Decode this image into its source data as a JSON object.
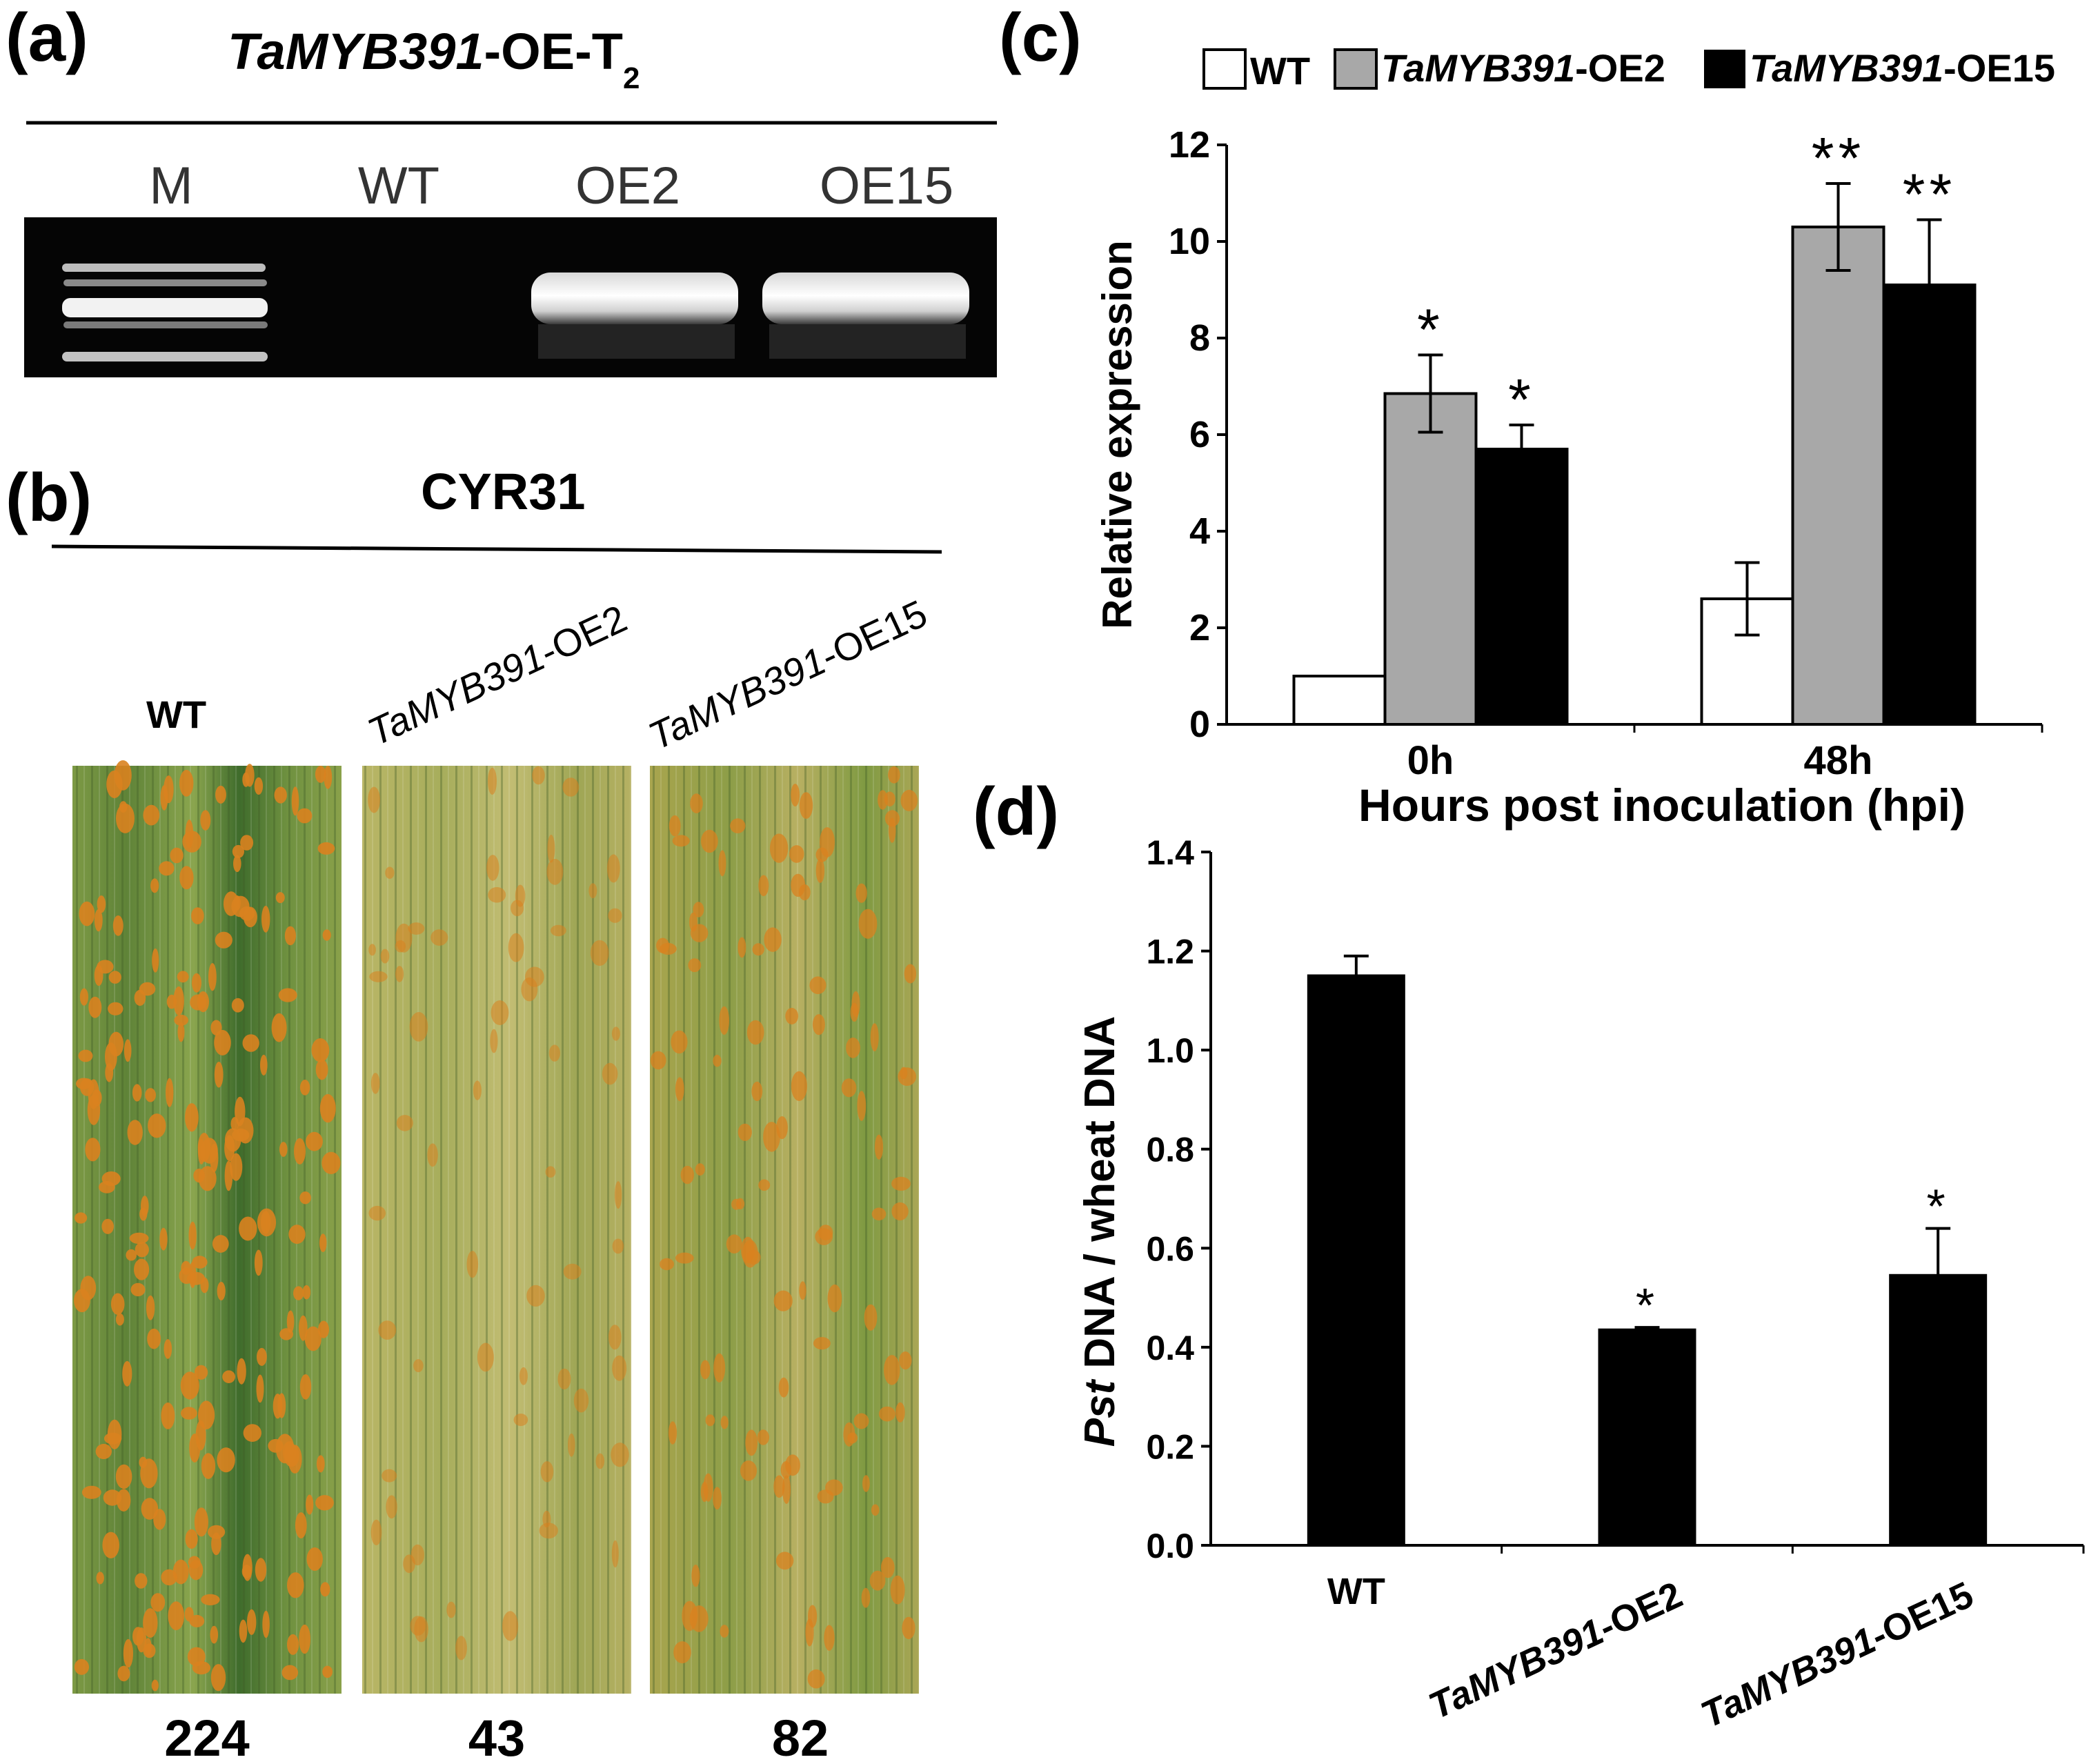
{
  "panel_a": {
    "label": "(a)",
    "title_gene": "TaMYB391",
    "title_suffix": "-OE-T",
    "title_sub": "2",
    "lanes": [
      "M",
      "WT",
      "OE2",
      "OE15"
    ]
  },
  "panel_b": {
    "label": "(b)",
    "title": "CYR31",
    "leaves": [
      {
        "label": "WT",
        "gene": "",
        "suffix": "WT",
        "count": "224",
        "lesion_density": "high"
      },
      {
        "label": "TaMYB391-OE2",
        "gene": "TaMYB391",
        "suffix": "-OE2",
        "count": "43",
        "lesion_density": "low"
      },
      {
        "label": "TaMYB391-OE15",
        "gene": "TaMYB391",
        "suffix": "-OE15",
        "count": "82",
        "lesion_density": "medium"
      }
    ]
  },
  "panel_c": {
    "label": "(c)",
    "legend": [
      {
        "gene": "",
        "suffix": "WT",
        "color": "#ffffff"
      },
      {
        "gene": "TaMYB391",
        "suffix": "-OE2",
        "color": "#a8a8a8"
      },
      {
        "gene": "TaMYB391",
        "suffix": "-OE15",
        "color": "#000000"
      }
    ]
  },
  "panel_d": {
    "label": "(d)",
    "ylabel_ital": "Pst",
    "ylabel_rest": " DNA / wheat DNA"
  },
  "chart_data": [
    {
      "id": "c",
      "type": "bar",
      "categories": [
        "0h",
        "48h"
      ],
      "series": [
        {
          "name": "WT",
          "values": [
            1.0,
            2.6
          ],
          "errors": [
            0,
            0.75
          ],
          "color": "#ffffff"
        },
        {
          "name": "TaMYB391-OE2",
          "values": [
            6.85,
            10.3
          ],
          "errors": [
            0.8,
            0.9
          ],
          "color": "#a8a8a8"
        },
        {
          "name": "TaMYB391-OE15",
          "values": [
            5.7,
            9.1
          ],
          "errors": [
            0.5,
            1.35
          ],
          "color": "#000000"
        }
      ],
      "significance": [
        [
          "",
          "*",
          "*"
        ],
        [
          "",
          "**",
          "**"
        ]
      ],
      "xlabel": "Hours post inoculation (hpi)",
      "ylabel": "Relative expression",
      "ylim": [
        0,
        12
      ],
      "yticks": [
        "0",
        "2",
        "4",
        "6",
        "8",
        "10",
        "12"
      ],
      "grid": false
    },
    {
      "id": "d",
      "type": "bar",
      "categories": [
        "WT",
        "TaMYB391-OE2",
        "TaMYB391-OE15"
      ],
      "series": [
        {
          "name": "Pst DNA / wheat DNA",
          "values": [
            1.15,
            0.435,
            0.545
          ],
          "errors": [
            0.04,
            0.005,
            0.095
          ],
          "color": "#000000"
        }
      ],
      "significance": [
        "",
        "*",
        "*"
      ],
      "ylabel": "Pst DNA / wheat DNA",
      "ylim": [
        0,
        1.4
      ],
      "yticks": [
        "0.0",
        "0.2",
        "0.4",
        "0.6",
        "0.8",
        "1.0",
        "1.2",
        "1.4"
      ],
      "grid": false
    }
  ]
}
